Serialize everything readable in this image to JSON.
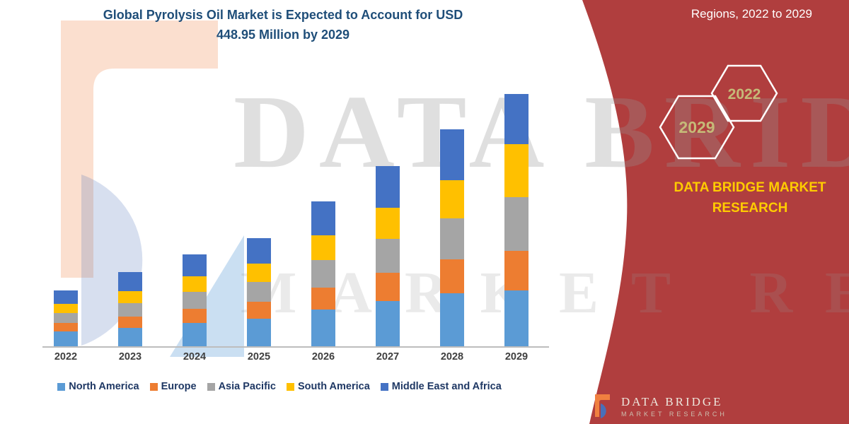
{
  "title": {
    "line1": "Global Pyrolysis Oil Market is Expected to Account for USD",
    "line2": "448.95 Million by 2029"
  },
  "panel": {
    "regions_label": "Regions, 2022 to 2029",
    "hexagons": [
      {
        "year": "2029"
      },
      {
        "year": "2022"
      }
    ],
    "brand_line1": "DATA BRIDGE MARKET",
    "brand_line2": "RESEARCH",
    "panel_color": "#B03E3E",
    "accent_color": "#FFCC00",
    "hex_year_color": "#C5BA78"
  },
  "watermark": {
    "line1": "DATA BRIDGE",
    "line2": "MARKET RESEARCH"
  },
  "footer_logo": {
    "name": "DATA BRIDGE",
    "subname": "MARKET RESEARCH"
  },
  "chart_data": {
    "type": "bar",
    "stacked": true,
    "title": "Global Pyrolysis Oil Market is Expected to Account for USD 448.95 Million by 2029",
    "value_unit": "USD Million",
    "total_2029": 448.95,
    "categories": [
      "2022",
      "2023",
      "2024",
      "2025",
      "2026",
      "2027",
      "2028",
      "2029"
    ],
    "series": [
      {
        "name": "North America",
        "color": "#5B9BD5",
        "values": [
          26,
          33,
          42,
          49,
          65,
          81,
          95,
          100
        ]
      },
      {
        "name": "Europe",
        "color": "#ED7D31",
        "values": [
          15,
          20,
          25,
          30,
          40,
          50,
          60,
          70
        ]
      },
      {
        "name": "Asia Pacific",
        "color": "#A5A5A5",
        "values": [
          18,
          24,
          30,
          36,
          48,
          60,
          73,
          95
        ]
      },
      {
        "name": "South America",
        "color": "#FFC000",
        "values": [
          16,
          21,
          27,
          32,
          44,
          56,
          68,
          95
        ]
      },
      {
        "name": "Middle East and Africa",
        "color": "#4472C4",
        "values": [
          25,
          34,
          39,
          45,
          61,
          74,
          90,
          88.95
        ]
      }
    ],
    "ylim": [
      0,
      460
    ],
    "grid": false,
    "legend_position": "bottom"
  }
}
